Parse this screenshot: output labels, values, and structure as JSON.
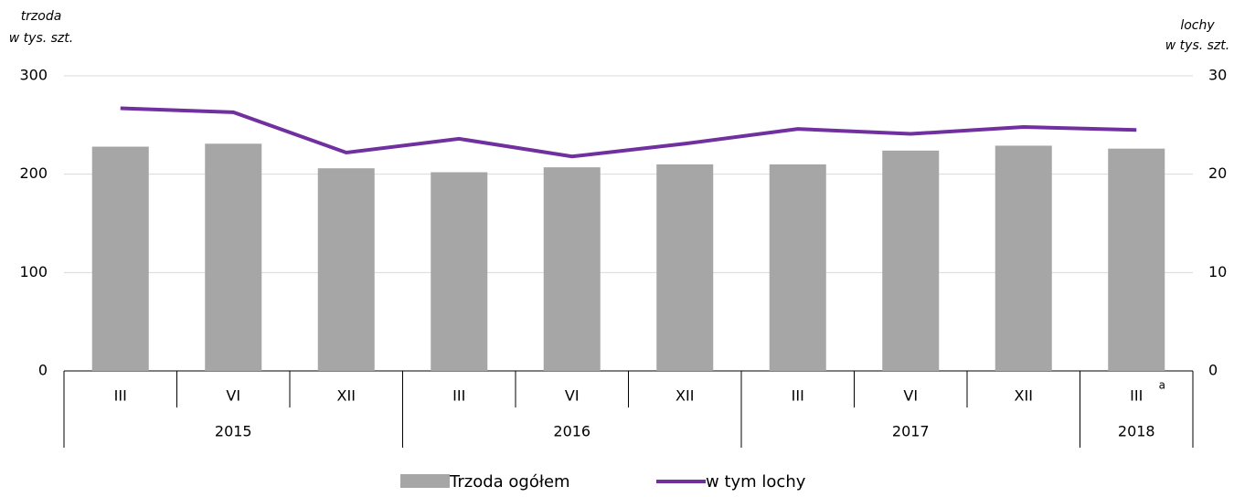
{
  "chart_data": {
    "type": "bar_line",
    "y_label": [
      "trzoda",
      "w tys. szt."
    ],
    "y2_label": [
      "lochy",
      "w tys. szt."
    ],
    "categories": [
      "III",
      "VI",
      "XII",
      "III",
      "VI",
      "XII",
      "III",
      "VI",
      "XII",
      "III"
    ],
    "category_superscripts": [
      null,
      null,
      null,
      null,
      null,
      null,
      null,
      null,
      null,
      "a"
    ],
    "groups": [
      {
        "label": "2015",
        "count": 3
      },
      {
        "label": "2016",
        "count": 3
      },
      {
        "label": "2017",
        "count": 3
      },
      {
        "label": "2018",
        "count": 1
      }
    ],
    "series": [
      {
        "name": "Trzoda ogółem",
        "type": "bar",
        "color": "#a6a6a6",
        "values": [
          228,
          231,
          206,
          202,
          207,
          210,
          210,
          224,
          229,
          226
        ]
      },
      {
        "name": "w tym lochy",
        "type": "line",
        "axis": "y2",
        "color": "#7030a0",
        "values": [
          26.7,
          26.3,
          22.2,
          23.6,
          21.8,
          23.1,
          24.6,
          24.1,
          24.8,
          24.5
        ]
      }
    ],
    "ylim": [
      0,
      300
    ],
    "yticks": [
      0,
      100,
      200,
      300
    ],
    "y2lim": [
      0,
      30
    ],
    "y2ticks": [
      0,
      10,
      20,
      30
    ],
    "grid": true
  }
}
